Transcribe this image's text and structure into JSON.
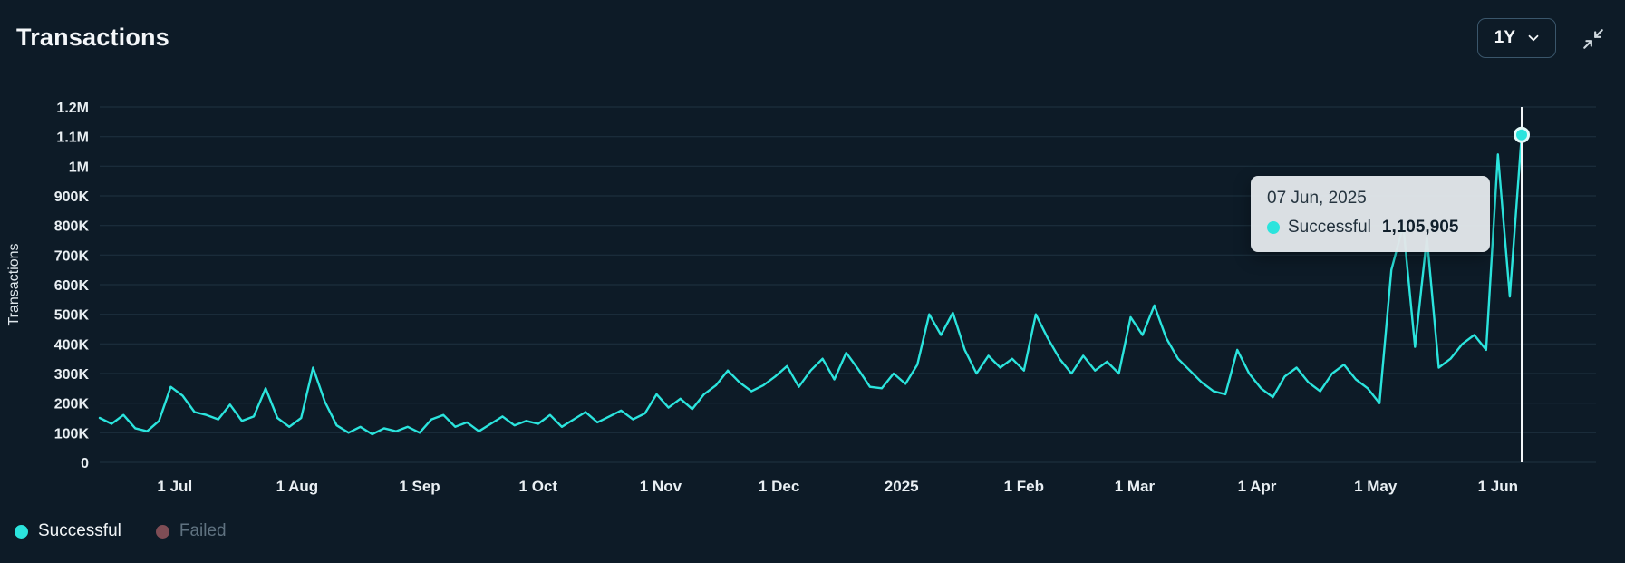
{
  "header": {
    "title": "Transactions",
    "range_label": "1Y"
  },
  "tooltip": {
    "date": "07 Jun, 2025",
    "series_label": "Successful",
    "value": "1,105,905"
  },
  "legend": {
    "successful": "Successful",
    "failed": "Failed"
  },
  "chart_data": {
    "type": "line",
    "title": "Transactions",
    "xlabel": "",
    "ylabel": "Transactions",
    "ylim": [
      0,
      1200000
    ],
    "grid": "horizontal",
    "legend_position": "bottom-left",
    "y_ticks": [
      {
        "value": 0,
        "label": "0"
      },
      {
        "value": 100000,
        "label": "100K"
      },
      {
        "value": 200000,
        "label": "200K"
      },
      {
        "value": 300000,
        "label": "300K"
      },
      {
        "value": 400000,
        "label": "400K"
      },
      {
        "value": 500000,
        "label": "500K"
      },
      {
        "value": 600000,
        "label": "600K"
      },
      {
        "value": 700000,
        "label": "700K"
      },
      {
        "value": 800000,
        "label": "800K"
      },
      {
        "value": 900000,
        "label": "900K"
      },
      {
        "value": 1000000,
        "label": "1M"
      },
      {
        "value": 1100000,
        "label": "1.1M"
      },
      {
        "value": 1200000,
        "label": "1.2M"
      }
    ],
    "x_ticks": [
      {
        "day": 19,
        "label": "1 Jul"
      },
      {
        "day": 50,
        "label": "1 Aug"
      },
      {
        "day": 81,
        "label": "1 Sep"
      },
      {
        "day": 111,
        "label": "1 Oct"
      },
      {
        "day": 142,
        "label": "1 Nov"
      },
      {
        "day": 172,
        "label": "1 Dec"
      },
      {
        "day": 203,
        "label": "2025"
      },
      {
        "day": 234,
        "label": "1 Feb"
      },
      {
        "day": 262,
        "label": "1 Mar"
      },
      {
        "day": 293,
        "label": "1 Apr"
      },
      {
        "day": 323,
        "label": "1 May"
      },
      {
        "day": 354,
        "label": "1 Jun"
      }
    ],
    "day_step": 3,
    "total_days": 360,
    "series": [
      {
        "name": "Successful",
        "color": "#2be4dd",
        "visible": true,
        "values": [
          150000,
          130000,
          160000,
          115000,
          105000,
          140000,
          255000,
          225000,
          170000,
          160000,
          145000,
          195000,
          140000,
          155000,
          250000,
          150000,
          120000,
          150000,
          320000,
          205000,
          125000,
          100000,
          120000,
          95000,
          115000,
          105000,
          120000,
          100000,
          145000,
          160000,
          120000,
          135000,
          105000,
          130000,
          155000,
          125000,
          140000,
          130000,
          160000,
          120000,
          145000,
          170000,
          135000,
          155000,
          175000,
          145000,
          165000,
          230000,
          185000,
          215000,
          180000,
          230000,
          260000,
          310000,
          270000,
          240000,
          260000,
          290000,
          325000,
          255000,
          310000,
          350000,
          280000,
          370000,
          315000,
          255000,
          250000,
          300000,
          265000,
          330000,
          500000,
          430000,
          505000,
          380000,
          300000,
          360000,
          320000,
          350000,
          310000,
          500000,
          420000,
          350000,
          300000,
          360000,
          310000,
          340000,
          300000,
          490000,
          430000,
          530000,
          420000,
          350000,
          310000,
          270000,
          240000,
          230000,
          380000,
          300000,
          250000,
          220000,
          290000,
          320000,
          270000,
          240000,
          300000,
          330000,
          280000,
          250000,
          200000,
          650000,
          800000,
          390000,
          760000,
          320000,
          350000,
          400000,
          430000,
          380000,
          1040000,
          560000,
          1105905
        ]
      },
      {
        "name": "Failed",
        "color": "#7e4d55",
        "visible": false,
        "values": []
      }
    ],
    "highlight": {
      "day": 360,
      "date": "07 Jun, 2025",
      "series": "Successful",
      "value": 1105905
    }
  }
}
